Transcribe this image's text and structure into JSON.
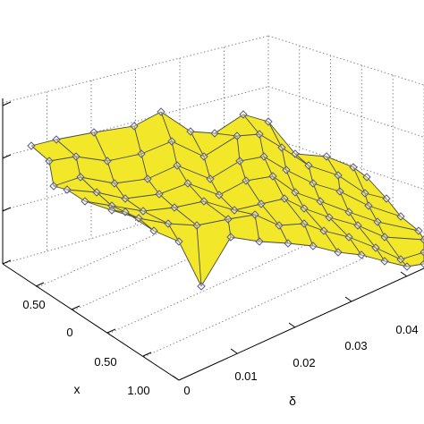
{
  "chart_data": {
    "type": "surface3d",
    "title": "",
    "xlabel": "x",
    "ylabel": "δ",
    "zlabel": "",
    "x_ticks": [
      "1.00",
      "0.50",
      "0",
      "0.50"
    ],
    "delta_ticks": [
      "0",
      "0.01",
      "0.02",
      "0.03",
      "0.04"
    ],
    "grid": true,
    "surface_color": "#f2e829",
    "mesh_color": "#4a4a4a",
    "marker": "diamond",
    "marker_color": "#5a5a8c",
    "surface_nodes": [
      [
        [
          35,
          163
        ],
        [
          63,
          156
        ],
        [
          105,
          148
        ],
        [
          150,
          141
        ],
        [
          180,
          125
        ],
        [
          213,
          147
        ],
        [
          240,
          149
        ],
        [
          272,
          128
        ],
        [
          300,
          136
        ],
        [
          330,
          172
        ],
        [
          365,
          175
        ],
        [
          395,
          187
        ],
        [
          410,
          198
        ]
      ],
      [
        [
          55,
          180
        ],
        [
          85,
          175
        ],
        [
          120,
          180
        ],
        [
          158,
          172
        ],
        [
          192,
          158
        ],
        [
          228,
          175
        ],
        [
          265,
          152
        ],
        [
          290,
          150
        ],
        [
          315,
          165
        ],
        [
          345,
          185
        ],
        [
          378,
          196
        ],
        [
          408,
          216
        ],
        [
          432,
          222
        ]
      ],
      [
        [
          60,
          208
        ],
        [
          90,
          198
        ],
        [
          128,
          205
        ],
        [
          165,
          200
        ],
        [
          198,
          185
        ],
        [
          235,
          200
        ],
        [
          268,
          180
        ],
        [
          295,
          175
        ],
        [
          320,
          190
        ],
        [
          350,
          205
        ],
        [
          380,
          214
        ],
        [
          412,
          230
        ],
        [
          448,
          242
        ]
      ],
      [
        [
          75,
          212
        ],
        [
          108,
          215
        ],
        [
          140,
          222
        ],
        [
          178,
          217
        ],
        [
          210,
          205
        ],
        [
          245,
          218
        ],
        [
          275,
          202
        ],
        [
          305,
          197
        ],
        [
          330,
          215
        ],
        [
          358,
          225
        ],
        [
          390,
          237
        ],
        [
          422,
          248
        ],
        [
          468,
          258
        ]
      ],
      [
        [
          95,
          225
        ],
        [
          125,
          230
        ],
        [
          160,
          236
        ],
        [
          195,
          232
        ],
        [
          228,
          225
        ],
        [
          262,
          235
        ],
        [
          292,
          228
        ],
        [
          318,
          222
        ],
        [
          340,
          233
        ],
        [
          368,
          243
        ],
        [
          400,
          252
        ],
        [
          430,
          265
        ],
        [
          474,
          268
        ]
      ],
      [
        [
          125,
          235
        ],
        [
          155,
          244
        ],
        [
          188,
          250
        ],
        [
          220,
          252
        ],
        [
          255,
          245
        ],
        [
          285,
          240
        ],
        [
          312,
          252
        ],
        [
          340,
          250
        ],
        [
          362,
          258
        ],
        [
          390,
          265
        ],
        [
          420,
          277
        ],
        [
          448,
          290
        ],
        [
          474,
          282
        ]
      ],
      [
        [
          140,
          237
        ],
        [
          172,
          258
        ],
        [
          200,
          270
        ],
        [
          225,
          320
        ],
        [
          258,
          265
        ],
        [
          290,
          270
        ],
        [
          322,
          272
        ],
        [
          350,
          275
        ],
        [
          378,
          282
        ],
        [
          404,
          285
        ],
        [
          430,
          292
        ],
        [
          455,
          298
        ],
        [
          474,
          295
        ]
      ]
    ]
  }
}
